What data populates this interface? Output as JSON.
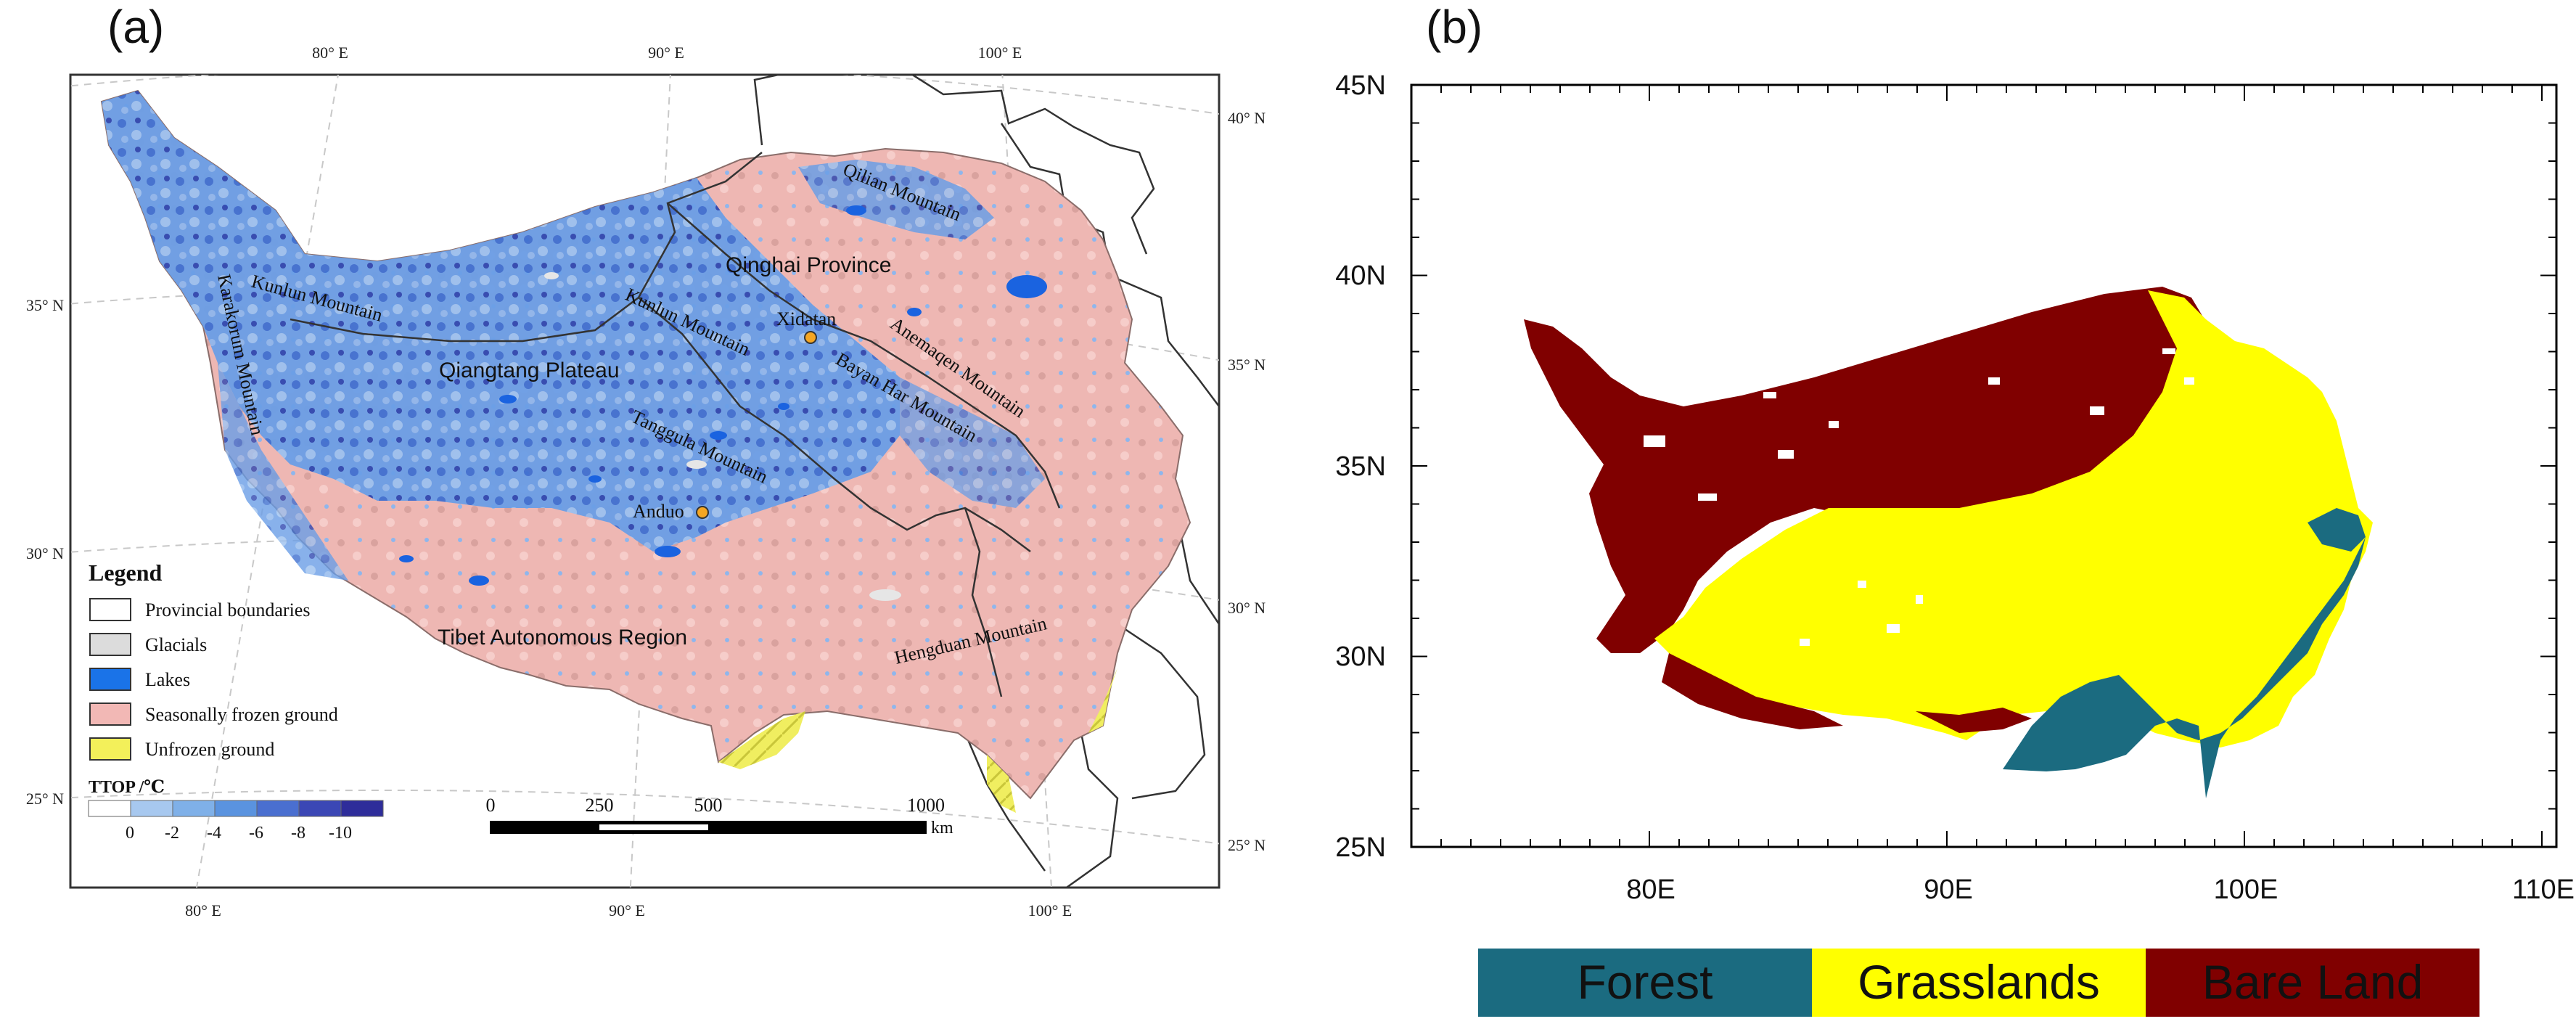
{
  "panel_a": {
    "label": "(a)",
    "top_lon_labels": [
      "80° E",
      "90° E",
      "100° E"
    ],
    "bottom_lon_labels": [
      "80° E",
      "90° E",
      "100° E"
    ],
    "left_lat_labels": [
      "35° N",
      "30° N",
      "25° N"
    ],
    "right_lat_labels": [
      "40° N",
      "35° N",
      "30° N",
      "25° N"
    ],
    "regions": {
      "qinghai": "Qinghai   Province",
      "tibet": "Tibet   Autonomous   Region",
      "qiangtang": "Qiangtang Plateau"
    },
    "mountains": {
      "qilian": "Qilian Mountain",
      "kunlun_west": "Kunlun  Mountain",
      "kunlun_east": "Kunlun  Mountain",
      "karakorum": "Karakorum Mountain",
      "anemaqen": "Anemaqen Mountain",
      "bayan_har": "Bayan Har Mountain",
      "tanggula": "Tanggula Mountain",
      "hengduan": "Hengduan Mountain"
    },
    "stations": [
      "Xidatan",
      "Anduo"
    ],
    "legend": {
      "title": "Legend",
      "items": [
        {
          "label": "Provincial boundaries",
          "color": "#ffffff"
        },
        {
          "label": "Glacials",
          "color": "#dcdcdc"
        },
        {
          "label": "Lakes",
          "color": "#1a73e8"
        },
        {
          "label": "Seasonally frozen ground",
          "color": "#f2b8b5"
        },
        {
          "label": "Unfrozen ground",
          "color": "#f3f05a"
        }
      ],
      "ttop_title": "TTOP /℃",
      "ttop_ticks": [
        "0",
        "-2",
        "-4",
        "-6",
        "-8",
        "-10"
      ],
      "ttop_colors": [
        "#ffffff",
        "#a7c8ef",
        "#7fb0e8",
        "#5a93df",
        "#4a6fd0",
        "#3b47b5",
        "#2e2d9a"
      ]
    },
    "scale_bar": {
      "ticks": [
        "0",
        "250",
        "500",
        "1000"
      ],
      "unit": "km"
    }
  },
  "panel_b": {
    "label": "(b)",
    "y_ticks": [
      "45N",
      "40N",
      "35N",
      "30N",
      "25N"
    ],
    "x_ticks": [
      "80E",
      "90E",
      "100E",
      "110E"
    ],
    "legend": [
      {
        "label": "Forest",
        "color": "#1b6b80"
      },
      {
        "label": "Grasslands",
        "color": "#ffff00"
      },
      {
        "label": "Bare Land",
        "color": "#800000"
      }
    ]
  }
}
